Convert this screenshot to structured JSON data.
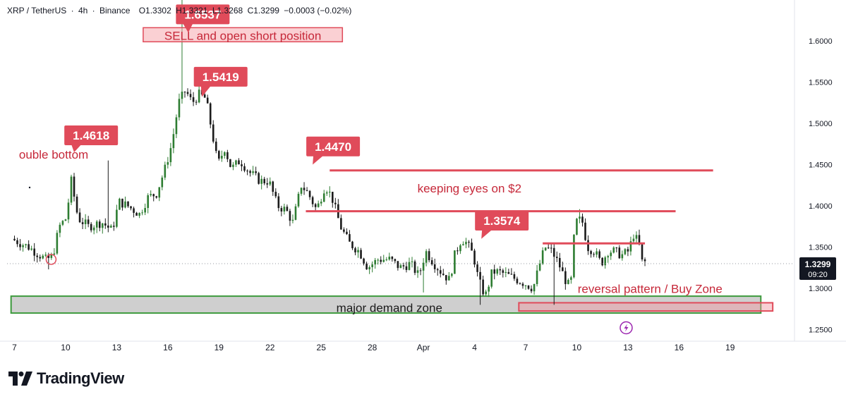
{
  "header": {
    "symbol": "XRP / TetherUS",
    "interval": "4h",
    "exchange": "Binance",
    "open": "O1.3302",
    "high": "H1.3321",
    "low": "L1.3268",
    "close": "C1.3299",
    "change": "−0.0003 (−0.02%)"
  },
  "brand": {
    "name": "TradingView"
  },
  "colors": {
    "up": "#2e7d32",
    "down": "#1b1b1b",
    "annotation": "#e04b5a",
    "annotation_text": "#c62839",
    "zone_fill": "#cfcfcf",
    "zone_border": "#3d9a3d",
    "price_badge": "#131722"
  },
  "chart_data": {
    "type": "candlestick",
    "title": "XRP / TetherUS · 4h · Binance",
    "x_ticks": [
      "7",
      "10",
      "13",
      "16",
      "19",
      "22",
      "25",
      "28",
      "Apr",
      "4",
      "7",
      "10",
      "13",
      "16",
      "19"
    ],
    "y_ticks": [
      "1.6000",
      "1.5500",
      "1.5000",
      "1.4500",
      "1.4000",
      "1.3500",
      "1.3000",
      "1.2500"
    ],
    "ylim": [
      1.235,
      1.64
    ],
    "current_price": "1.3299",
    "countdown": "09:20",
    "anchors": [
      {
        "d": 7.0,
        "p": 1.36
      },
      {
        "d": 8.0,
        "p": 1.35
      },
      {
        "d": 9.0,
        "p": 1.335
      },
      {
        "d": 9.4,
        "p": 1.338
      },
      {
        "d": 9.8,
        "p": 1.375
      },
      {
        "d": 10.2,
        "p": 1.385
      },
      {
        "d": 10.5,
        "p": 1.43
      },
      {
        "d": 10.9,
        "p": 1.385
      },
      {
        "d": 11.5,
        "p": 1.375
      },
      {
        "d": 12.3,
        "p": 1.38
      },
      {
        "d": 12.9,
        "p": 1.37
      },
      {
        "d": 13.3,
        "p": 1.405
      },
      {
        "d": 13.8,
        "p": 1.4
      },
      {
        "d": 14.5,
        "p": 1.39
      },
      {
        "d": 15.0,
        "p": 1.41
      },
      {
        "d": 15.5,
        "p": 1.415
      },
      {
        "d": 16.0,
        "p": 1.445
      },
      {
        "d": 16.4,
        "p": 1.475
      },
      {
        "d": 16.8,
        "p": 1.525
      },
      {
        "d": 17.2,
        "p": 1.54
      },
      {
        "d": 17.6,
        "p": 1.525
      },
      {
        "d": 18.0,
        "p": 1.535
      },
      {
        "d": 18.4,
        "p": 1.53
      },
      {
        "d": 18.8,
        "p": 1.485
      },
      {
        "d": 19.1,
        "p": 1.45
      },
      {
        "d": 19.5,
        "p": 1.47
      },
      {
        "d": 19.9,
        "p": 1.445
      },
      {
        "d": 20.4,
        "p": 1.455
      },
      {
        "d": 21.0,
        "p": 1.44
      },
      {
        "d": 21.6,
        "p": 1.43
      },
      {
        "d": 22.1,
        "p": 1.43
      },
      {
        "d": 22.6,
        "p": 1.4
      },
      {
        "d": 23.1,
        "p": 1.395
      },
      {
        "d": 23.5,
        "p": 1.38
      },
      {
        "d": 24.0,
        "p": 1.425
      },
      {
        "d": 24.4,
        "p": 1.415
      },
      {
        "d": 24.9,
        "p": 1.395
      },
      {
        "d": 25.4,
        "p": 1.425
      },
      {
        "d": 25.8,
        "p": 1.41
      },
      {
        "d": 26.3,
        "p": 1.375
      },
      {
        "d": 26.8,
        "p": 1.355
      },
      {
        "d": 27.4,
        "p": 1.345
      },
      {
        "d": 27.9,
        "p": 1.325
      },
      {
        "d": 28.5,
        "p": 1.335
      },
      {
        "d": 29.2,
        "p": 1.335
      },
      {
        "d": 29.8,
        "p": 1.325
      },
      {
        "d": 30.4,
        "p": 1.33
      },
      {
        "d": 30.9,
        "p": 1.315
      },
      {
        "d": 31.3,
        "p": 1.345
      },
      {
        "d": 31.8,
        "p": 1.33
      },
      {
        "d": 32.2,
        "p": 1.32
      },
      {
        "d": 32.7,
        "p": 1.31
      },
      {
        "d": 33.0,
        "p": 1.34
      },
      {
        "d": 33.4,
        "p": 1.36
      },
      {
        "d": 33.7,
        "p": 1.355
      },
      {
        "d": 34.1,
        "p": 1.34
      },
      {
        "d": 34.4,
        "p": 1.31
      },
      {
        "d": 34.8,
        "p": 1.29
      },
      {
        "d": 35.2,
        "p": 1.32
      },
      {
        "d": 35.6,
        "p": 1.32
      },
      {
        "d": 36.2,
        "p": 1.315
      },
      {
        "d": 36.7,
        "p": 1.31
      },
      {
        "d": 37.2,
        "p": 1.305
      },
      {
        "d": 37.6,
        "p": 1.3
      },
      {
        "d": 38.0,
        "p": 1.33
      },
      {
        "d": 38.3,
        "p": 1.35
      },
      {
        "d": 38.7,
        "p": 1.345
      },
      {
        "d": 39.1,
        "p": 1.33
      },
      {
        "d": 39.5,
        "p": 1.31
      },
      {
        "d": 39.8,
        "p": 1.3
      },
      {
        "d": 40.0,
        "p": 1.36
      },
      {
        "d": 40.2,
        "p": 1.385
      },
      {
        "d": 40.5,
        "p": 1.38
      },
      {
        "d": 40.8,
        "p": 1.35
      },
      {
        "d": 41.2,
        "p": 1.345
      },
      {
        "d": 41.6,
        "p": 1.33
      },
      {
        "d": 42.0,
        "p": 1.345
      },
      {
        "d": 42.4,
        "p": 1.345
      },
      {
        "d": 42.8,
        "p": 1.34
      },
      {
        "d": 43.2,
        "p": 1.345
      },
      {
        "d": 43.5,
        "p": 1.365
      },
      {
        "d": 43.8,
        "p": 1.355
      },
      {
        "d": 44.0,
        "p": 1.332
      }
    ],
    "annotations": {
      "callouts": [
        {
          "label": "1.6537",
          "d": 18.05,
          "p": 1.6322,
          "pd": 17.2,
          "pp": 1.61
        },
        {
          "label": "1.5419",
          "d": 19.1,
          "p": 1.5565,
          "pd": 18.0,
          "pp": 1.532
        },
        {
          "label": "1.4618",
          "d": 11.5,
          "p": 1.4855,
          "pd": 10.5,
          "pp": 1.465
        },
        {
          "label": "1.4470",
          "d": 25.7,
          "p": 1.472,
          "pd": 24.5,
          "pp": 1.45
        },
        {
          "label": "1.3574",
          "d": 35.6,
          "p": 1.382,
          "pd": 34.4,
          "pp": 1.36
        }
      ],
      "texts": [
        {
          "text": "SELL and open short position",
          "d": 20.4,
          "p": 1.6066,
          "boxed": true
        },
        {
          "text": "ouble bottom",
          "d": 9.3,
          "p": 1.4625,
          "boxed": false
        },
        {
          "text": "keeping eyes on $2",
          "d": 33.7,
          "p": 1.4215,
          "boxed": false
        },
        {
          "text": "reversal pattern / Buy Zone",
          "d": 44.3,
          "p": 1.2994,
          "boxed": false
        },
        {
          "text": "major demand zone",
          "d": 29.0,
          "p": 1.2766,
          "boxed": false
        }
      ],
      "lines": [
        {
          "d1": 25.5,
          "d2": 48.0,
          "p": 1.443
        },
        {
          "d1": 24.1,
          "d2": 45.8,
          "p": 1.3935
        },
        {
          "d1": 38.0,
          "d2": 44.0,
          "p": 1.3545
        }
      ],
      "demand_zone": {
        "d1": 6.8,
        "d2": 50.8,
        "p_top": 1.2905,
        "p_bot": 1.27
      },
      "buy_zone": {
        "d1": 36.6,
        "d2": 51.5,
        "p_top": 1.2825,
        "p_bot": 1.2725
      }
    }
  }
}
